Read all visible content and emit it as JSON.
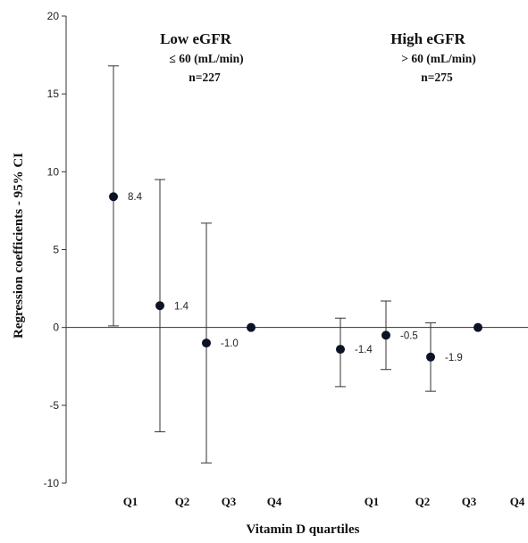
{
  "chart_data": {
    "type": "scatter",
    "ylabel": "Regression coefficients - 95% CI",
    "xlabel": "Vitamin D quartiles",
    "ylim": [
      -10,
      20
    ],
    "yticks": [
      -10,
      -5,
      0,
      5,
      10,
      15,
      20
    ],
    "reference_line_y": 0,
    "categories": [
      "Q1",
      "Q2",
      "Q3",
      "Q4",
      "Q1",
      "Q2",
      "Q3",
      "Q4"
    ],
    "groups": [
      {
        "title": "Low eGFR",
        "criterion": "≤ 60 (mL/min)",
        "n": "n=227",
        "points": [
          {
            "category": "Q1",
            "value": 8.4,
            "ci_low": 0.1,
            "ci_high": 16.8,
            "label": "8.4"
          },
          {
            "category": "Q2",
            "value": 1.4,
            "ci_low": -6.7,
            "ci_high": 9.5,
            "label": "1.4"
          },
          {
            "category": "Q3",
            "value": -1.0,
            "ci_low": -8.7,
            "ci_high": 6.7,
            "label": "-1.0"
          },
          {
            "category": "Q4",
            "value": 0,
            "label": ""
          }
        ]
      },
      {
        "title": "High eGFR",
        "criterion": "> 60 (mL/min)",
        "n": "n=275",
        "points": [
          {
            "category": "Q1",
            "value": -1.4,
            "ci_low": -3.8,
            "ci_high": 0.6,
            "label": "-1.4"
          },
          {
            "category": "Q2",
            "value": -0.5,
            "ci_low": -2.7,
            "ci_high": 1.7,
            "label": "-0.5"
          },
          {
            "category": "Q3",
            "value": -1.9,
            "ci_low": -4.1,
            "ci_high": 0.3,
            "label": "-1.9"
          },
          {
            "category": "Q4",
            "value": 0,
            "label": ""
          }
        ]
      }
    ],
    "grid": false,
    "legend": "none"
  }
}
